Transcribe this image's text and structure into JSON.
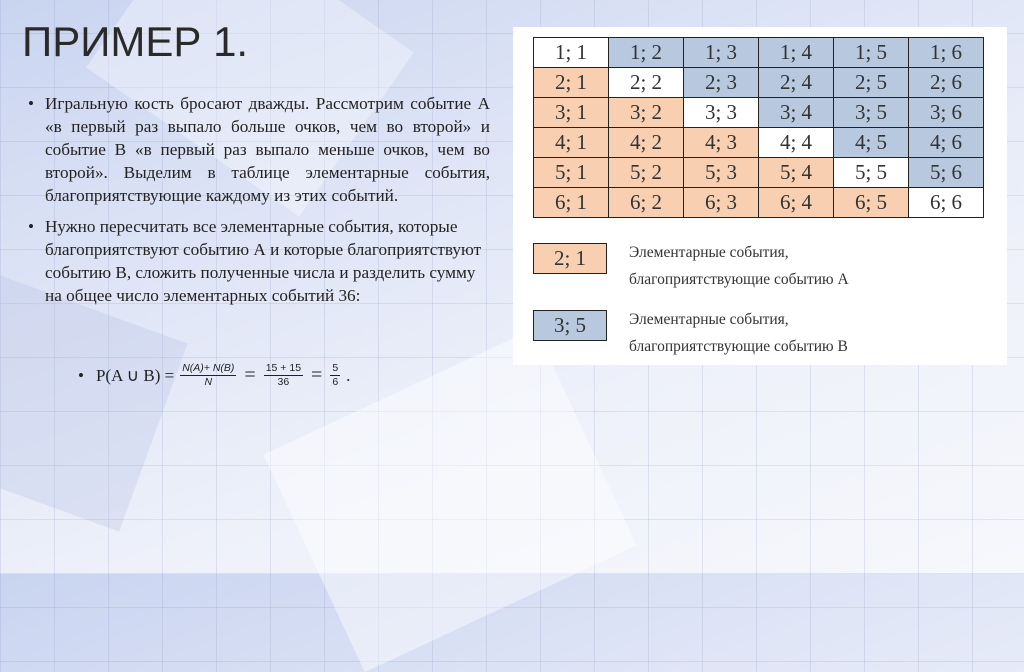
{
  "title": "ПРИМЕР 1.",
  "bullets": [
    "Игральную кость бросают дважды. Рассмотрим событие А «в первый раз выпало больше очков, чем во второй» и событие В «в первый раз выпало меньше очков, чем во второй». Выделим в таблице элементарные события, благоприятствующие каждому из этих событий.",
    "Нужно пересчитать все элементарные события, которые благоприятствуют событию А и которые благоприятствуют событию В, сложить полученные числа и разделить сумму на общее число элементарных событий 36:"
  ],
  "formula": {
    "lhs": "P(A ∪ B) =",
    "frac1_num": "N(A)+  N(B)",
    "frac1_den": "N",
    "eq": "=",
    "frac2_num": "15 + 15",
    "frac2_den": "36",
    "frac3_num": "5",
    "frac3_den": "6",
    "end": "."
  },
  "table": {
    "rows": [
      [
        "1; 1",
        "1; 2",
        "1; 3",
        "1; 4",
        "1; 5",
        "1; 6"
      ],
      [
        "2; 1",
        "2; 2",
        "2; 3",
        "2; 4",
        "2; 5",
        "2; 6"
      ],
      [
        "3; 1",
        "3; 2",
        "3; 3",
        "3; 4",
        "3; 5",
        "3; 6"
      ],
      [
        "4; 1",
        "4; 2",
        "4; 3",
        "4; 4",
        "4; 5",
        "4; 6"
      ],
      [
        "5; 1",
        "5; 2",
        "5; 3",
        "5; 4",
        "5; 5",
        "5; 6"
      ],
      [
        "6; 1",
        "6; 2",
        "6; 3",
        "6; 4",
        "6; 5",
        "6; 6"
      ]
    ],
    "colors": {
      "A": "#f8cfb0",
      "B": "#b7c8df",
      "diagonal": "#ffffff"
    }
  },
  "legend": [
    {
      "sample": "2; 1",
      "line1": "Элементарные события,",
      "line2": "благоприятствующие событию А",
      "category": "A"
    },
    {
      "sample": "3; 5",
      "line1": "Элементарные события,",
      "line2": "благоприятствующие событию В",
      "category": "B"
    }
  ]
}
